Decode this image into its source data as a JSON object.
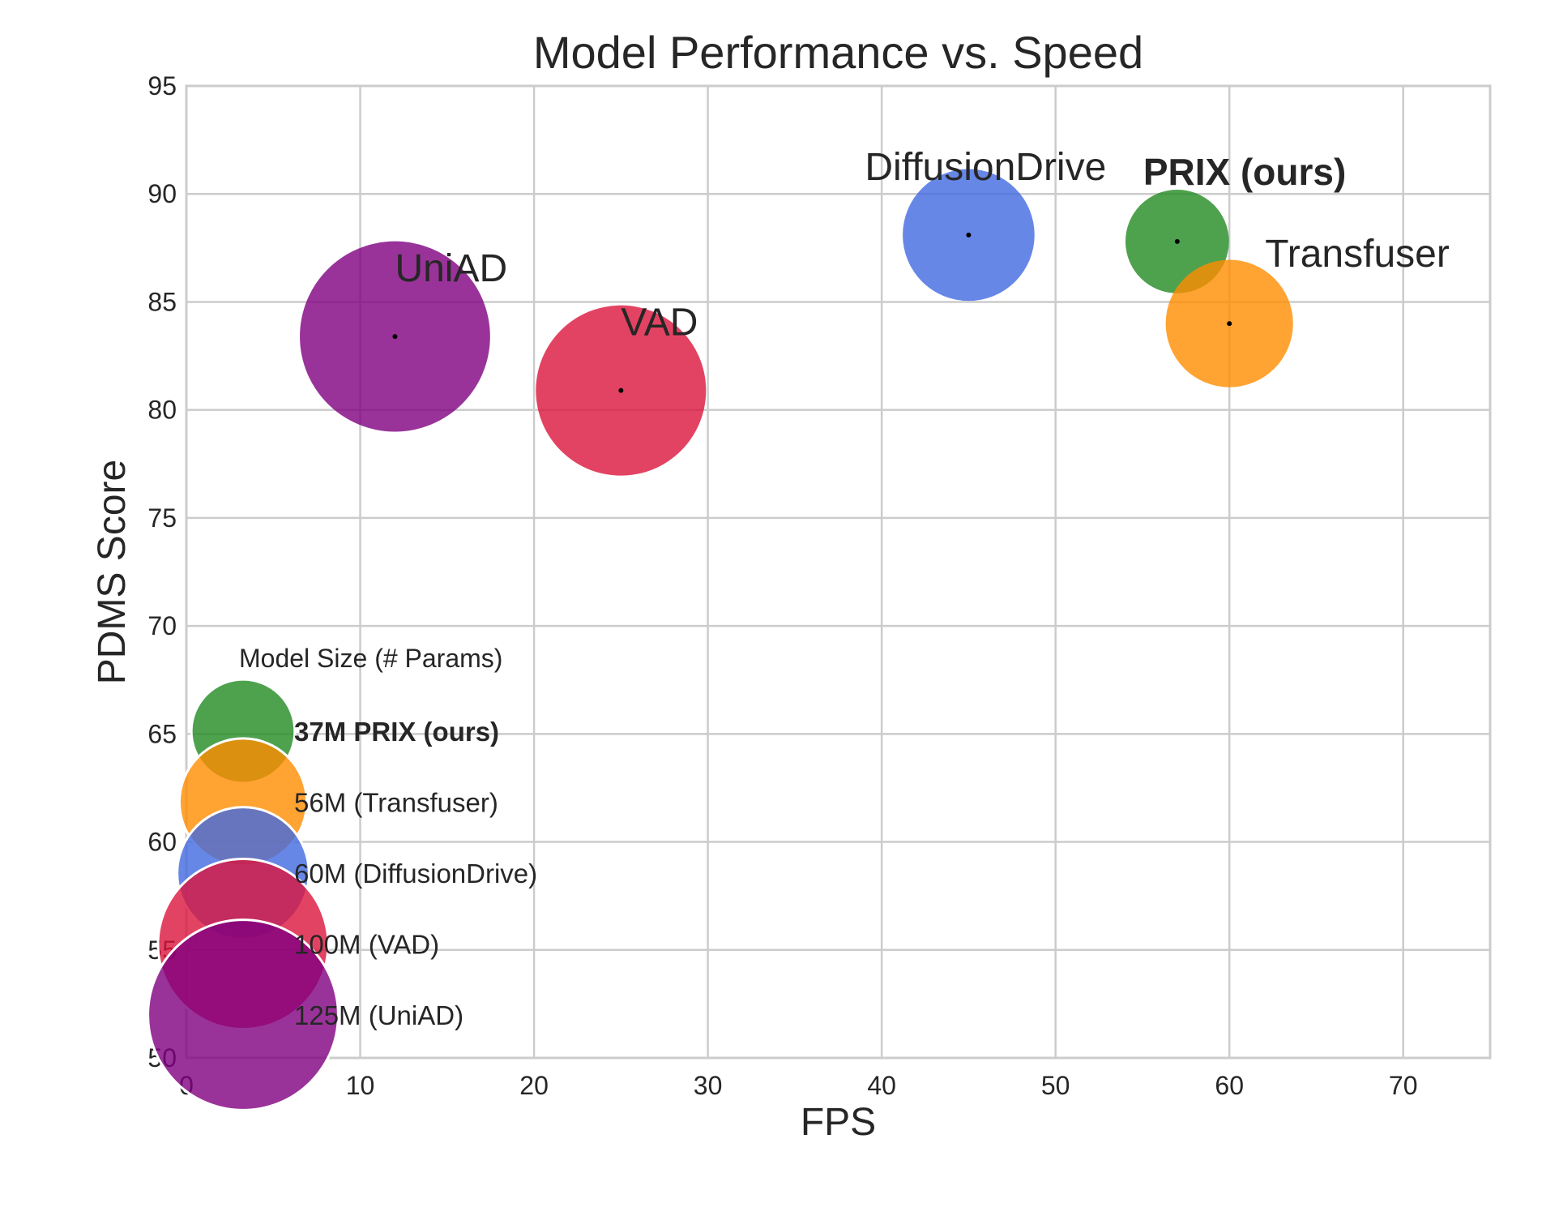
{
  "chart_data": {
    "type": "scatter",
    "title": "Model Performance vs. Speed",
    "xlabel": "FPS",
    "ylabel": "PDMS Score",
    "xlim": [
      0,
      75
    ],
    "ylim": [
      50,
      95
    ],
    "xticks": [
      0,
      10,
      20,
      30,
      40,
      50,
      60,
      70
    ],
    "yticks": [
      50,
      55,
      60,
      65,
      70,
      75,
      80,
      85,
      90,
      95
    ],
    "grid": true,
    "size_encoding": "model parameters (M)",
    "points": [
      {
        "label": "UniAD",
        "x": 12,
        "y": 83.4,
        "size_m": 125,
        "color": "#800080",
        "bold": false
      },
      {
        "label": "VAD",
        "x": 25,
        "y": 80.9,
        "size_m": 100,
        "color": "#DC143C",
        "bold": false
      },
      {
        "label": "DiffusionDrive",
        "x": 45,
        "y": 88.1,
        "size_m": 60,
        "color": "#4169E1",
        "bold": false
      },
      {
        "label": "PRIX (ours)",
        "x": 57,
        "y": 87.8,
        "size_m": 37,
        "color": "#228B22",
        "bold": true
      },
      {
        "label": "Transfuser",
        "x": 60,
        "y": 84.0,
        "size_m": 56,
        "color": "#FF8C00",
        "bold": false
      }
    ],
    "legend": {
      "title": "Model Size (# Params)",
      "placement": "lower-left",
      "entries": [
        {
          "text": "37M PRIX (ours)",
          "size_m": 37,
          "color": "#228B22",
          "bold": true
        },
        {
          "text": "56M (Transfuser)",
          "size_m": 56,
          "color": "#FF8C00",
          "bold": false
        },
        {
          "text": "60M (DiffusionDrive)",
          "size_m": 60,
          "color": "#4169E1",
          "bold": false
        },
        {
          "text": "100M (VAD)",
          "size_m": 100,
          "color": "#DC143C",
          "bold": false
        },
        {
          "text": "125M (UniAD)",
          "size_m": 125,
          "color": "#800080",
          "bold": false
        }
      ]
    }
  }
}
